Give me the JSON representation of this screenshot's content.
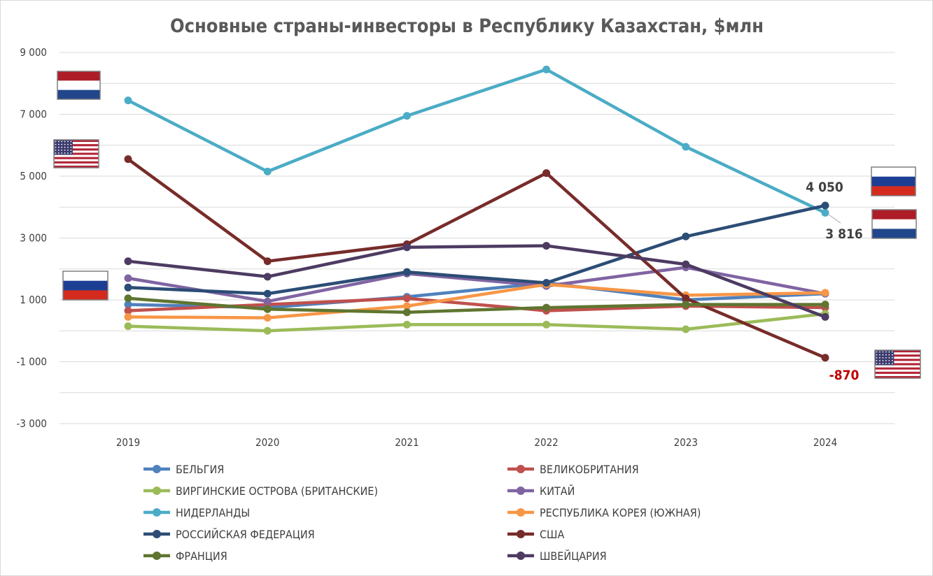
{
  "chart_data": {
    "type": "line",
    "title": "Основные страны-инвесторы в Республику Казахстан, $млн",
    "xlabel": "",
    "ylabel": "",
    "categories": [
      "2019",
      "2020",
      "2021",
      "2022",
      "2023",
      "2024"
    ],
    "ylim": [
      -3000,
      9000
    ],
    "yticks": [
      -3000,
      -1000,
      1000,
      3000,
      5000,
      7000,
      9000
    ],
    "ytick_labels": [
      "-3 000",
      "-1 000",
      "1 000",
      "3 000",
      "5 000",
      "7 000",
      "9 000"
    ],
    "grid": true,
    "legend_placement": "bottom",
    "series": [
      {
        "name": "БЕЛЬГИЯ",
        "color": "#4f81bd",
        "values": [
          850,
          750,
          1100,
          1550,
          1000,
          1200
        ]
      },
      {
        "name": "ВЕЛИКОБРИТАНИЯ",
        "color": "#c0504d",
        "values": [
          650,
          850,
          1050,
          650,
          800,
          750
        ]
      },
      {
        "name": "ВИРГИНСКИЕ ОСТРОВА (БРИТАНСКИЕ)",
        "color": "#9bbb59",
        "values": [
          150,
          0,
          200,
          200,
          50,
          550
        ]
      },
      {
        "name": "КИТАЙ",
        "color": "#8064a2",
        "values": [
          1700,
          950,
          1850,
          1450,
          2050,
          1200
        ]
      },
      {
        "name": "НИДЕРЛАНДЫ",
        "color": "#4bacc6",
        "values": [
          7450,
          5150,
          6950,
          8450,
          5950,
          3816
        ]
      },
      {
        "name": "РЕСПУБЛИКА КОРЕЯ (ЮЖНАЯ)",
        "color": "#f79646",
        "values": [
          450,
          420,
          800,
          1500,
          1150,
          1230
        ]
      },
      {
        "name": "РОССИЙСКАЯ ФЕДЕРАЦИЯ",
        "color": "#2c4d75",
        "values": [
          1400,
          1200,
          1900,
          1550,
          3050,
          4050
        ]
      },
      {
        "name": "США",
        "color": "#772c2a",
        "values": [
          5550,
          2250,
          2800,
          5100,
          1050,
          -870
        ]
      },
      {
        "name": "ФРАНЦИЯ",
        "color": "#5f7530",
        "values": [
          1050,
          700,
          600,
          750,
          850,
          850
        ]
      },
      {
        "name": "ШВЕЙЦАРИЯ",
        "color": "#4d3b62",
        "values": [
          2250,
          1750,
          2700,
          2750,
          2150,
          450
        ]
      }
    ],
    "annotations": [
      {
        "text": "4 050",
        "color": "#404040",
        "series": "РОССИЙСКАЯ ФЕДЕРАЦИЯ",
        "category": "2024"
      },
      {
        "text": "3 816",
        "color": "#404040",
        "series": "НИДЕРЛАНДЫ",
        "category": "2024"
      },
      {
        "text": "-870",
        "color": "#c00000",
        "series": "США",
        "category": "2024"
      }
    ],
    "flags": [
      {
        "country": "netherlands",
        "series": "НИДЕРЛАНДЫ",
        "side": "left"
      },
      {
        "country": "usa",
        "series": "США",
        "side": "left"
      },
      {
        "country": "russia",
        "series": "РОССИЙСКАЯ ФЕДЕРАЦИЯ",
        "side": "left"
      },
      {
        "country": "russia",
        "series": "РОССИЙСКАЯ ФЕДЕРАЦИЯ",
        "side": "right"
      },
      {
        "country": "netherlands",
        "series": "НИДЕРЛАНДЫ",
        "side": "right"
      },
      {
        "country": "usa",
        "series": "США",
        "side": "right"
      }
    ]
  }
}
